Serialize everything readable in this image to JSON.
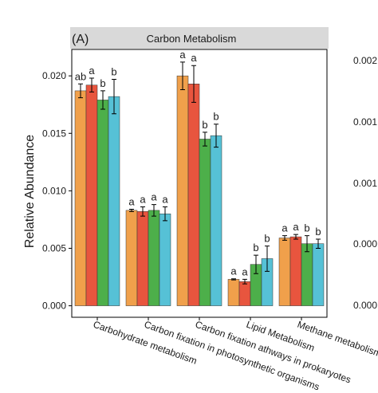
{
  "chart_data": [
    {
      "type": "bar",
      "panel_label": "(A)",
      "title": "Carbon Metabolism",
      "y_label": "Relative Abundance",
      "categories": [
        "Carbohydrate metabolism",
        "Carbon fixation in photosynthetic organisms",
        "Carbon fixation athways in prokaryotes",
        "Lipid Metabolism",
        "Methane metabolism"
      ],
      "series": [
        {
          "color": "#F0A04B",
          "values": [
            0.0187,
            0.0083,
            0.02,
            0.0023,
            0.0059
          ],
          "errors": [
            0.0006,
            0.0001,
            0.0012,
            5e-05,
            0.0002
          ],
          "letters": [
            "ab",
            "a",
            "a",
            "a",
            "a"
          ]
        },
        {
          "color": "#E8553E",
          "values": [
            0.0192,
            0.0082,
            0.0193,
            0.0021,
            0.006
          ],
          "errors": [
            0.0006,
            0.0004,
            0.0016,
            0.0002,
            0.0002
          ],
          "letters": [
            "a",
            "a",
            "a",
            "a",
            "a"
          ]
        },
        {
          "color": "#4DAF4A",
          "values": [
            0.0179,
            0.0083,
            0.0145,
            0.0036,
            0.0054
          ],
          "errors": [
            0.0008,
            0.0005,
            0.0006,
            0.0008,
            0.0007
          ],
          "letters": [
            "b",
            "a",
            "b",
            "b",
            "b"
          ]
        },
        {
          "color": "#56C1D6",
          "values": [
            0.0182,
            0.008,
            0.0148,
            0.0041,
            0.0054
          ],
          "errors": [
            0.0015,
            0.0006,
            0.001,
            0.0011,
            0.0004
          ],
          "letters": [
            "b",
            "a",
            "b",
            "b",
            "b"
          ]
        }
      ],
      "ylim": [
        -0.001,
        0.0223
      ],
      "yticks": [
        {
          "value": 0,
          "label": "0.000"
        },
        {
          "value": 0.005,
          "label": "0.005"
        },
        {
          "value": 0.01,
          "label": "0.010"
        },
        {
          "value": 0.015,
          "label": "0.015"
        },
        {
          "value": 0.02,
          "label": "0.020"
        }
      ]
    },
    {
      "type": "partial",
      "ytick_labels": [
        "0.002",
        "0.001",
        "0.001",
        "0.000",
        "0.000"
      ]
    }
  ]
}
